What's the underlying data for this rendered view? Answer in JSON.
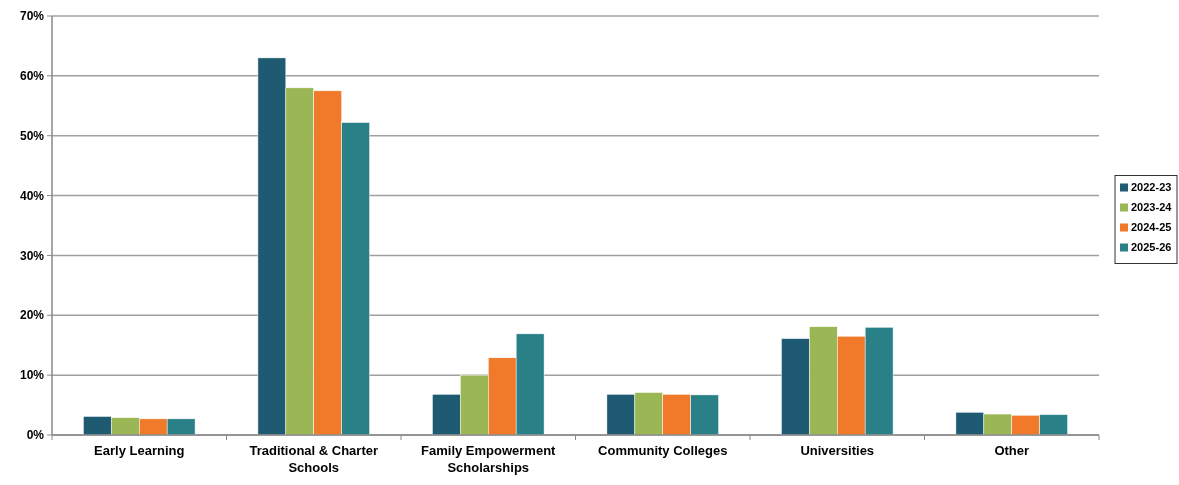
{
  "chart_data": {
    "type": "bar",
    "categories": [
      "Early Learning",
      "Traditional & Charter Schools",
      "Family Empowerment Scholarships",
      "Community Colleges",
      "Universities",
      "Other"
    ],
    "series": [
      {
        "name": "2022-23",
        "color": "#1f5a73",
        "values": [
          3.1,
          63,
          6.8,
          6.8,
          16.1,
          3.8
        ]
      },
      {
        "name": "2023-24",
        "color": "#9bb755",
        "values": [
          2.9,
          58,
          10,
          7.1,
          18.1,
          3.5
        ]
      },
      {
        "name": "2024-25",
        "color": "#f07a2a",
        "values": [
          2.7,
          57.5,
          12.9,
          6.8,
          16.5,
          3.3
        ]
      },
      {
        "name": "2025-26",
        "color": "#2a8087",
        "values": [
          2.7,
          52.2,
          16.9,
          6.7,
          18,
          3.4
        ]
      }
    ],
    "ylim": [
      0,
      70
    ],
    "yticks": [
      {
        "value": 0,
        "label": "0%"
      },
      {
        "value": 10,
        "label": "10%"
      },
      {
        "value": 20,
        "label": "20%"
      },
      {
        "value": 30,
        "label": "30%"
      },
      {
        "value": 40,
        "label": "40%"
      },
      {
        "value": 50,
        "label": "50%"
      },
      {
        "value": 60,
        "label": "60%"
      },
      {
        "value": 70,
        "label": "70%"
      }
    ],
    "grid": "y",
    "legend": "right"
  }
}
